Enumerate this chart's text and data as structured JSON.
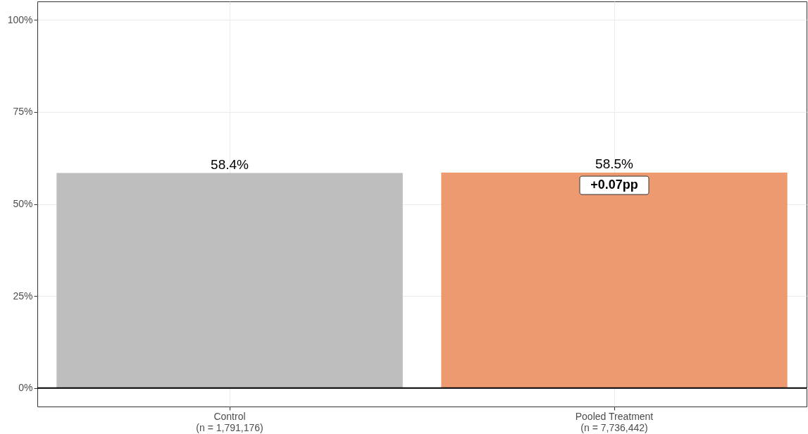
{
  "chart_data": {
    "type": "bar",
    "categories": [
      "Control\n(n = 1,791,176)",
      "Pooled Treatment\n(n = 7,736,442)"
    ],
    "values": [
      58.4,
      58.5
    ],
    "colors": [
      "#bebebe",
      "#ee9a70"
    ],
    "value_labels": [
      "58.4%",
      "58.5%"
    ],
    "annotations": [
      "+0.07pp"
    ],
    "ref_lines": [
      {
        "axis": "y",
        "value": 0,
        "color": "#000000"
      }
    ],
    "ylim": [
      -5,
      105
    ],
    "yticks": [
      {
        "value": 0,
        "label": "0%"
      },
      {
        "value": 25,
        "label": "25%"
      },
      {
        "value": 50,
        "label": "50%"
      },
      {
        "value": 75,
        "label": "75%"
      },
      {
        "value": 100,
        "label": "100%"
      }
    ],
    "grid": true
  }
}
